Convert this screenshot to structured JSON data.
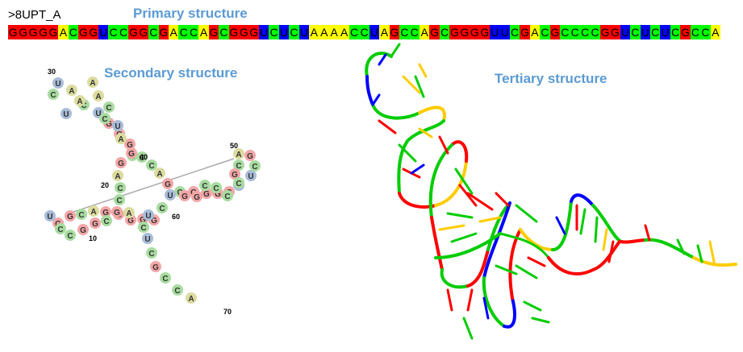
{
  "header": {
    "id": ">8UPT_A"
  },
  "titles": {
    "primary": "Primary structure",
    "secondary": "Secondary structure",
    "tertiary": "Tertiary structure"
  },
  "sequence": "GGGGGACGGUCCGGCGACCAGCGGGUCUCUAAAACCUAGCCAGCGGGGUUCGACGCCCCGGUCUCUCGCCA",
  "colors": {
    "G": "#ff0000",
    "A": "#ffff00",
    "C": "#00ff00",
    "U": "#0000ff"
  },
  "secondary_colors": {
    "G": "#f4a6a6",
    "A": "#dcdca0",
    "C": "#a8dca0",
    "U": "#a8bcd8"
  },
  "position_labels": [
    "10",
    "20",
    "30",
    "40",
    "50",
    "60",
    "70"
  ]
}
